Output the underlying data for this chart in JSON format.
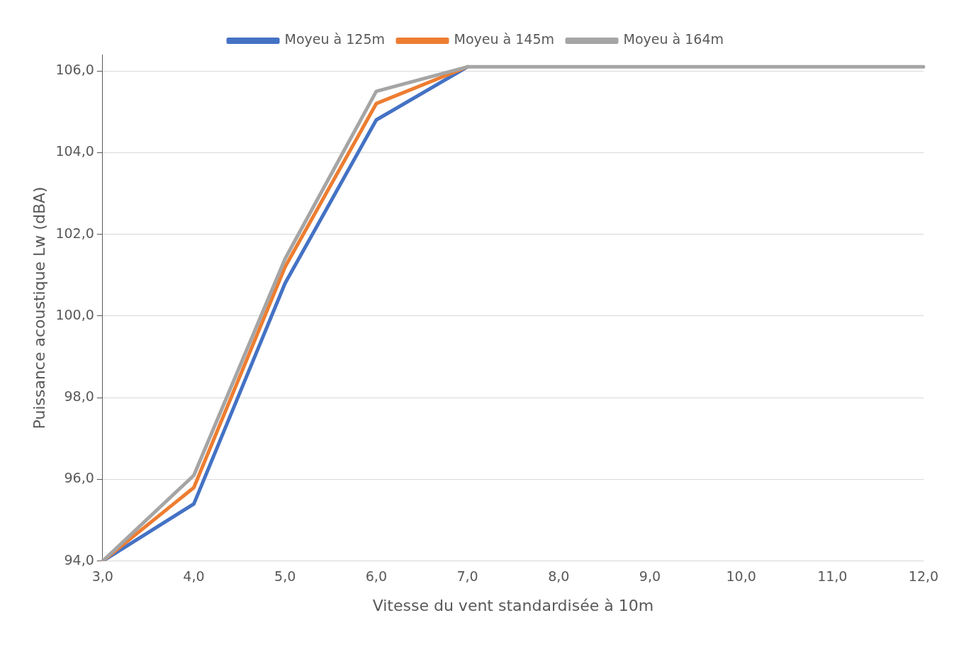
{
  "chart_data": {
    "type": "line",
    "xlabel": "Vitesse du vent standardisée à 10m",
    "ylabel": "Puissance acoustique Lw (dBA)",
    "categories": [
      "3,0",
      "4,0",
      "5,0",
      "6,0",
      "7,0",
      "8,0",
      "9,0",
      "10,0",
      "11,0",
      "12,0"
    ],
    "series": [
      {
        "name": "Moyeu à 125m",
        "color": "#4472c4",
        "values": [
          94.0,
          95.4,
          100.8,
          104.8,
          106.1,
          null,
          null,
          null,
          null,
          null
        ]
      },
      {
        "name": "Moyeu à 145m",
        "color": "#ed7d31",
        "values": [
          94.0,
          95.8,
          101.2,
          105.2,
          106.1,
          null,
          null,
          null,
          null,
          null
        ]
      },
      {
        "name": "Moyeu à 164m",
        "color": "#a5a5a5",
        "values": [
          94.0,
          96.1,
          101.4,
          105.5,
          106.1,
          106.1,
          106.1,
          106.1,
          106.1,
          106.1
        ]
      }
    ],
    "ylim": [
      94,
      106.4
    ],
    "yticks": [
      {
        "value": 94,
        "label": "94,0"
      },
      {
        "value": 96,
        "label": "96,0"
      },
      {
        "value": 98,
        "label": "98,0"
      },
      {
        "value": 100,
        "label": "100,0"
      },
      {
        "value": 102,
        "label": "102,0"
      },
      {
        "value": 104,
        "label": "104,0"
      },
      {
        "value": 106,
        "label": "106,0"
      }
    ],
    "grid": "y",
    "legend": "top",
    "marker": "none",
    "line_style": "solid"
  }
}
